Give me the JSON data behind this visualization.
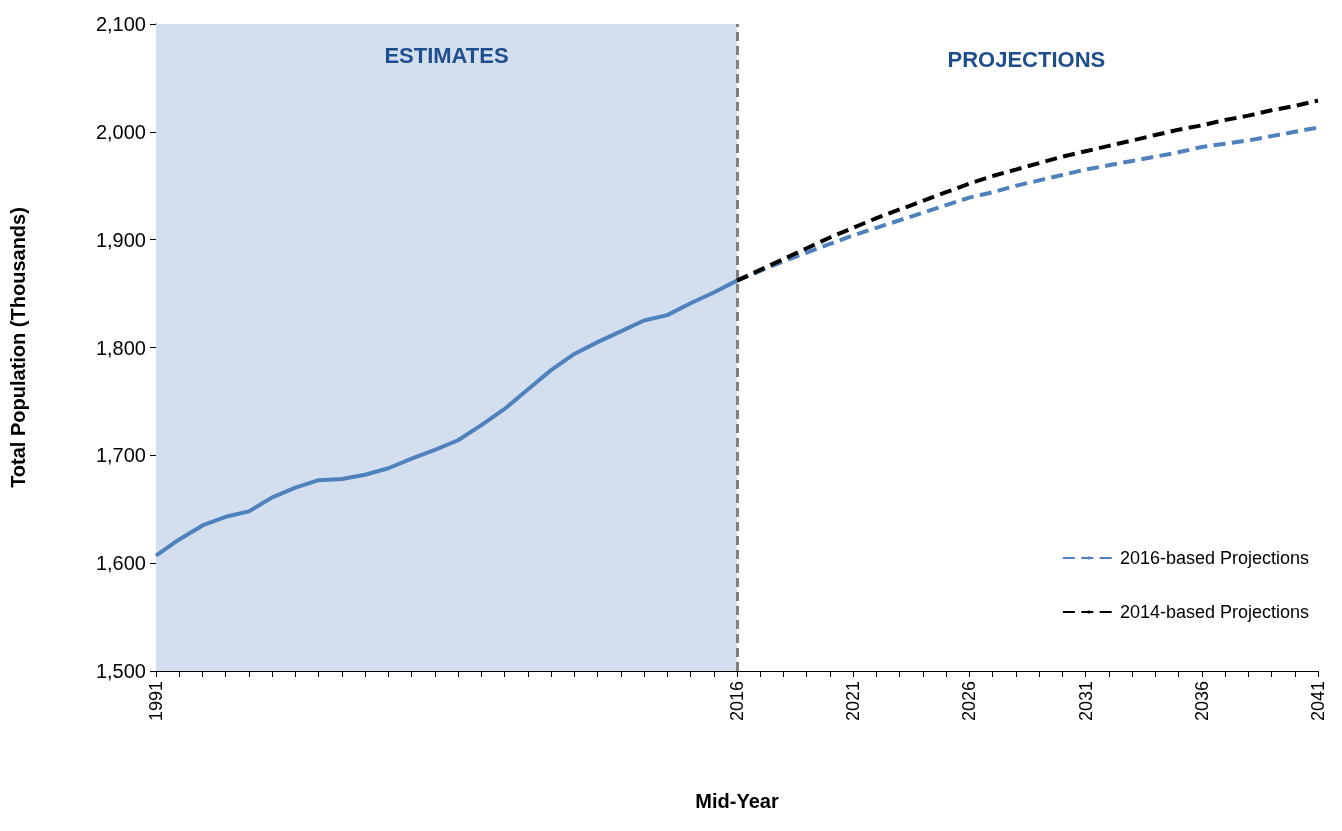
{
  "chart_data": {
    "type": "line",
    "xlabel": "Mid-Year",
    "ylabel": "Total Population (Thousands)",
    "xlim": [
      1991,
      2041
    ],
    "xticks": [
      1991,
      {
        "value": 1992,
        "label": null
      },
      {
        "value": 1993,
        "label": null
      },
      {
        "value": 1994,
        "label": null
      },
      {
        "value": 1995,
        "label": null
      },
      {
        "value": 1996,
        "label": null
      },
      {
        "value": 1997,
        "label": null
      },
      {
        "value": 1998,
        "label": null
      },
      {
        "value": 1999,
        "label": null
      },
      {
        "value": 2000,
        "label": null
      },
      {
        "value": 2001,
        "label": null
      },
      {
        "value": 2002,
        "label": null
      },
      {
        "value": 2003,
        "label": null
      },
      {
        "value": 2004,
        "label": null
      },
      {
        "value": 2005,
        "label": null
      },
      {
        "value": 2006,
        "label": null
      },
      {
        "value": 2007,
        "label": null
      },
      {
        "value": 2008,
        "label": null
      },
      {
        "value": 2009,
        "label": null
      },
      {
        "value": 2010,
        "label": null
      },
      {
        "value": 2011,
        "label": null
      },
      {
        "value": 2012,
        "label": null
      },
      {
        "value": 2013,
        "label": null
      },
      {
        "value": 2014,
        "label": null
      },
      {
        "value": 2015,
        "label": null
      },
      2016,
      {
        "value": 2017,
        "label": null
      },
      {
        "value": 2018,
        "label": null
      },
      {
        "value": 2019,
        "label": null
      },
      {
        "value": 2020,
        "label": null
      },
      2021,
      {
        "value": 2022,
        "label": null
      },
      {
        "value": 2023,
        "label": null
      },
      {
        "value": 2024,
        "label": null
      },
      {
        "value": 2025,
        "label": null
      },
      2026,
      {
        "value": 2027,
        "label": null
      },
      {
        "value": 2028,
        "label": null
      },
      {
        "value": 2029,
        "label": null
      },
      {
        "value": 2030,
        "label": null
      },
      2031,
      {
        "value": 2032,
        "label": null
      },
      {
        "value": 2033,
        "label": null
      },
      {
        "value": 2034,
        "label": null
      },
      {
        "value": 2035,
        "label": null
      },
      2036,
      {
        "value": 2037,
        "label": null
      },
      {
        "value": 2038,
        "label": null
      },
      {
        "value": 2039,
        "label": null
      },
      {
        "value": 2040,
        "label": null
      },
      2041
    ],
    "ylim": [
      1500,
      2100
    ],
    "yticks": [
      {
        "value": 1500,
        "label": "1,500"
      },
      {
        "value": 1600,
        "label": "1,600"
      },
      {
        "value": 1700,
        "label": "1,700"
      },
      {
        "value": 1800,
        "label": "1,800"
      },
      {
        "value": 1900,
        "label": "1,900"
      },
      {
        "value": 2000,
        "label": "2,000"
      },
      {
        "value": 2100,
        "label": "2,100"
      }
    ],
    "grid": false,
    "legend": "bottom right",
    "marker": "none",
    "series": [
      {
        "color": "#4f81bd",
        "line_style": "solid",
        "x": [
          1991,
          1992,
          1993,
          1994,
          1995,
          1996,
          1997,
          1998,
          1999,
          2000,
          2001,
          2002,
          2003,
          2004,
          2005,
          2006,
          2007,
          2008,
          2009,
          2010,
          2011,
          2012,
          2013,
          2014,
          2015,
          2016
        ],
        "values": [
          1607,
          1622,
          1635,
          1643,
          1648,
          1661,
          1670,
          1677,
          1678,
          1682,
          1688,
          1697,
          1705,
          1714,
          1728,
          1743,
          1761,
          1779,
          1794,
          1805,
          1815,
          1825,
          1830,
          1841,
          1851,
          1862
        ]
      },
      {
        "name": "2016-based Projections",
        "color": "#4f81bd",
        "line_style": "dashed",
        "x": [
          2016,
          2017,
          2018,
          2019,
          2020,
          2021,
          2022,
          2023,
          2024,
          2025,
          2026,
          2027,
          2028,
          2029,
          2030,
          2031,
          2032,
          2033,
          2034,
          2035,
          2036,
          2037,
          2038,
          2039,
          2040,
          2041
        ],
        "values": [
          1862,
          1871,
          1880,
          1888,
          1896,
          1904,
          1911,
          1918,
          1925,
          1932,
          1939,
          1944,
          1950,
          1955,
          1960,
          1965,
          1969,
          1973,
          1977,
          1981,
          1986,
          1989,
          1992,
          1996,
          2000,
          2004
        ]
      },
      {
        "name": "2014-based Projections",
        "color": "#000000",
        "line_style": "dashed",
        "x": [
          2016,
          2017,
          2018,
          2019,
          2020,
          2021,
          2022,
          2023,
          2024,
          2025,
          2026,
          2027,
          2028,
          2029,
          2030,
          2031,
          2032,
          2033,
          2034,
          2035,
          2036,
          2037,
          2038,
          2039,
          2040,
          2041
        ],
        "values": [
          1862,
          1872,
          1882,
          1892,
          1902,
          1911,
          1920,
          1928,
          1936,
          1944,
          1952,
          1959,
          1965,
          1971,
          1977,
          1982,
          1987,
          1992,
          1997,
          2002,
          2006,
          2011,
          2015,
          2020,
          2024,
          2029
        ]
      }
    ],
    "bands": [
      {
        "axis": "x",
        "from": 1991,
        "to": 2016,
        "label": "ESTIMATES",
        "color": "#d3dfee"
      }
    ],
    "ref_lines": [
      {
        "axis": "x",
        "value": 2016,
        "color": "#808080",
        "line_style": "dashed"
      }
    ],
    "annotations": [
      "PROJECTIONS"
    ]
  }
}
